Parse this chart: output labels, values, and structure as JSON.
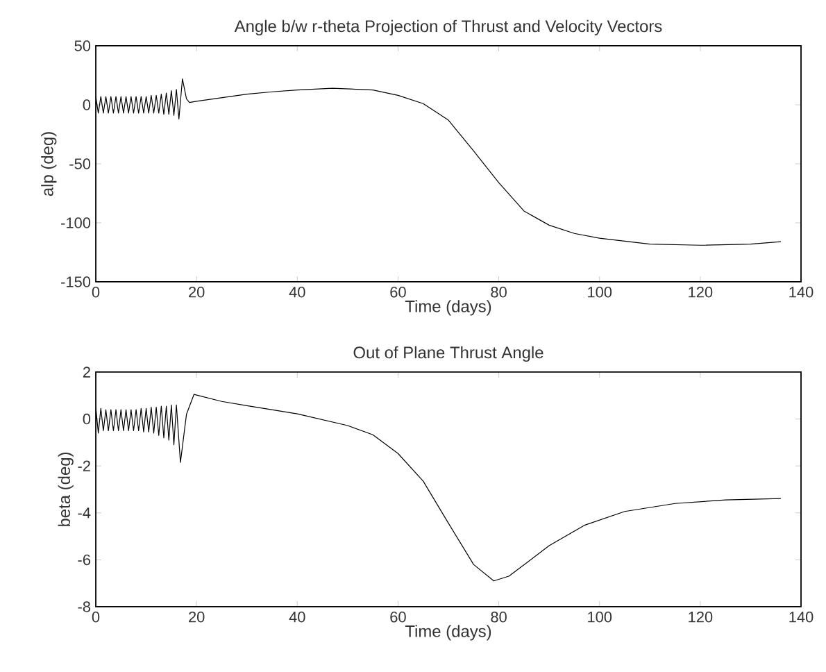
{
  "chart_data": [
    {
      "type": "line",
      "title": "Angle b/w r-theta Projection of Thrust and Velocity Vectors",
      "xlabel": "Time (days)",
      "ylabel": "alp (deg)",
      "xlim": [
        0,
        140
      ],
      "ylim": [
        -150,
        50
      ],
      "xticks": [
        0,
        20,
        40,
        60,
        80,
        100,
        120,
        140
      ],
      "yticks": [
        -150,
        -100,
        -50,
        0,
        50
      ],
      "series": [
        {
          "color": "#000000",
          "x": [
            0,
            0.5,
            1,
            1.5,
            2,
            2.5,
            3,
            3.5,
            4,
            4.5,
            5,
            5.5,
            6,
            6.5,
            7,
            7.5,
            8,
            8.5,
            9,
            9.5,
            10,
            10.5,
            11,
            11.5,
            12,
            12.5,
            13,
            13.5,
            14,
            14.5,
            15,
            15.5,
            16,
            16.5,
            17.2,
            18,
            18.6,
            20,
            25,
            30,
            35,
            40,
            47,
            55,
            60,
            65,
            70,
            75,
            80,
            85,
            90,
            95,
            100,
            110,
            120,
            130,
            136
          ],
          "values": [
            7,
            -7,
            7,
            -7,
            7,
            -7,
            7,
            -7,
            7,
            -7,
            7,
            -7,
            7,
            -7,
            7,
            -7,
            7,
            -7,
            7,
            -7,
            7,
            -7,
            8,
            -7,
            8,
            -7,
            9,
            -8,
            10,
            -8,
            12,
            -9,
            13,
            -12,
            22,
            5,
            2,
            3,
            6,
            9,
            11,
            12.6,
            14,
            12.6,
            8,
            1,
            -13,
            -39,
            -66,
            -90,
            -102,
            -109,
            -113,
            -118,
            -119,
            -118,
            -116
          ]
        }
      ]
    },
    {
      "type": "line",
      "title": "Out of Plane Thrust Angle",
      "xlabel": "Time (days)",
      "ylabel": "beta (deg)",
      "xlim": [
        0,
        140
      ],
      "ylim": [
        -8,
        2
      ],
      "xticks": [
        0,
        20,
        40,
        60,
        80,
        100,
        120,
        140
      ],
      "yticks": [
        -8,
        -6,
        -4,
        -2,
        0,
        2
      ],
      "series": [
        {
          "color": "#000000",
          "x": [
            0,
            0.5,
            1,
            1.5,
            2,
            2.5,
            3,
            3.5,
            4,
            4.5,
            5,
            5.5,
            6,
            6.5,
            7,
            7.5,
            8,
            8.5,
            9,
            9.5,
            10,
            10.5,
            11,
            11.5,
            12,
            12.5,
            13,
            13.5,
            14,
            14.5,
            15,
            15.5,
            16,
            16.8,
            18,
            19.5,
            25,
            30,
            40,
            50,
            55,
            60,
            65,
            70,
            75,
            79,
            82,
            90,
            97,
            105,
            115,
            125,
            136
          ],
          "values": [
            0.5,
            -0.6,
            0.45,
            -0.5,
            0.4,
            -0.5,
            0.4,
            -0.5,
            0.4,
            -0.5,
            0.4,
            -0.5,
            0.4,
            -0.5,
            0.4,
            -0.5,
            0.4,
            -0.5,
            0.45,
            -0.55,
            0.45,
            -0.55,
            0.5,
            -0.6,
            0.5,
            -0.7,
            0.55,
            -0.8,
            0.55,
            -0.9,
            0.6,
            -1.1,
            0.6,
            -1.85,
            0.2,
            1.05,
            0.75,
            0.57,
            0.22,
            -0.28,
            -0.67,
            -1.47,
            -2.65,
            -4.44,
            -6.2,
            -6.9,
            -6.7,
            -5.4,
            -4.53,
            -3.94,
            -3.6,
            -3.45,
            -3.39
          ]
        }
      ]
    }
  ]
}
